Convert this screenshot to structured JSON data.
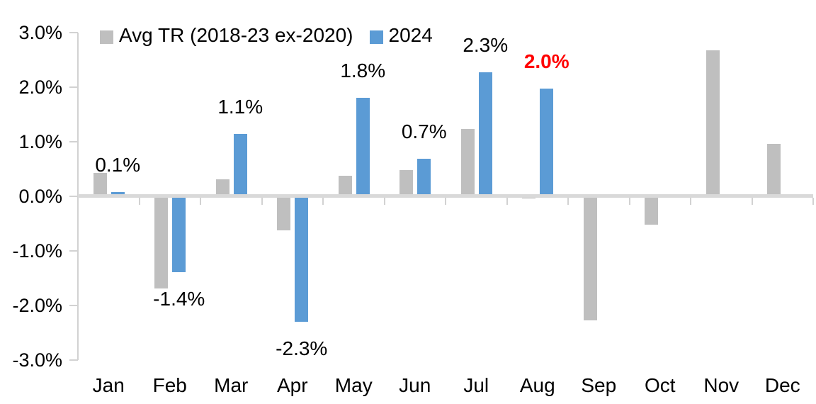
{
  "colors": {
    "series_avg": "#BFBFBF",
    "series_2024": "#5B9BD5",
    "highlight_label": "#FF0000",
    "text": "#000000",
    "axis": "#D2D2D2",
    "zero_line": "#D9D9D9"
  },
  "legend": {
    "items": [
      {
        "label": "Avg TR (2018-23 ex-2020)",
        "color": "#BFBFBF"
      },
      {
        "label": "2024",
        "color": "#5B9BD5"
      }
    ]
  },
  "chart_data": {
    "type": "bar",
    "title": "",
    "xlabel": "",
    "ylabel": "",
    "categories": [
      "Jan",
      "Feb",
      "Mar",
      "Apr",
      "May",
      "Jun",
      "Jul",
      "Aug",
      "Sep",
      "Oct",
      "Nov",
      "Dec"
    ],
    "series": [
      {
        "name": "Avg TR (2018-23 ex-2020)",
        "color": "#BFBFBF",
        "values": [
          0.42,
          -1.69,
          0.31,
          -0.63,
          0.37,
          0.47,
          1.23,
          -0.05,
          -2.28,
          -0.53,
          2.67,
          0.96
        ]
      },
      {
        "name": "2024",
        "color": "#5B9BD5",
        "values": [
          0.07,
          -1.4,
          1.13,
          -2.3,
          1.8,
          0.68,
          2.27,
          1.97,
          null,
          null,
          null,
          null
        ],
        "data_labels": [
          "0.1%",
          "-1.4%",
          "1.1%",
          "-2.3%",
          "1.8%",
          "0.7%",
          "2.3%",
          "2.0%",
          null,
          null,
          null,
          null
        ],
        "data_label_colors": [
          "#000000",
          "#000000",
          "#000000",
          "#000000",
          "#000000",
          "#000000",
          "#000000",
          "#FF0000",
          null,
          null,
          null,
          null
        ],
        "data_label_bold": [
          false,
          false,
          false,
          false,
          false,
          false,
          false,
          true,
          null,
          null,
          null,
          null
        ]
      }
    ],
    "ylim": [
      -3,
      3
    ],
    "ytick_labels": [
      "3.0%",
      "2.0%",
      "1.0%",
      "0.0%",
      "-1.0%",
      "-2.0%",
      "-3.0%"
    ],
    "ytick_values": [
      3,
      2,
      1,
      0,
      -1,
      -2,
      -3
    ],
    "grid": false,
    "legend_position": "top-left"
  }
}
